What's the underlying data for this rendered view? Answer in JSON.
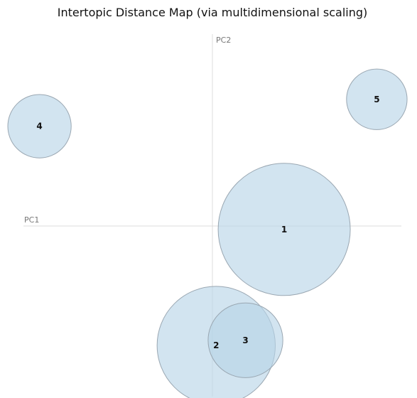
{
  "chart_data": {
    "type": "scatter",
    "title": "Intertopic Distance Map (via multidimensional scaling)",
    "xlabel": "PC1",
    "ylabel": "PC2",
    "series": [
      {
        "points": [
          {
            "label": "1",
            "x": 0.76,
            "y": -0.02,
            "size": 1.0
          },
          {
            "label": "2",
            "x": 0.04,
            "y": -0.7,
            "size": 0.8
          },
          {
            "label": "3",
            "x": 0.35,
            "y": -0.67,
            "size": 0.32
          },
          {
            "label": "4",
            "x": -1.83,
            "y": 0.52,
            "size": 0.23
          },
          {
            "label": "5",
            "x": 1.74,
            "y": 0.66,
            "size": 0.21
          }
        ]
      }
    ],
    "xlim": [
      -2.0,
      2.0
    ],
    "ylim": [
      -1.0,
      1.0
    ],
    "grid": false,
    "colors": {
      "bubble_fill": "#b7d3e6",
      "bubble_stroke": "#9aa7b2",
      "axis": "#dcdcdc",
      "axis_label": "#777777",
      "text": "#111111"
    }
  }
}
